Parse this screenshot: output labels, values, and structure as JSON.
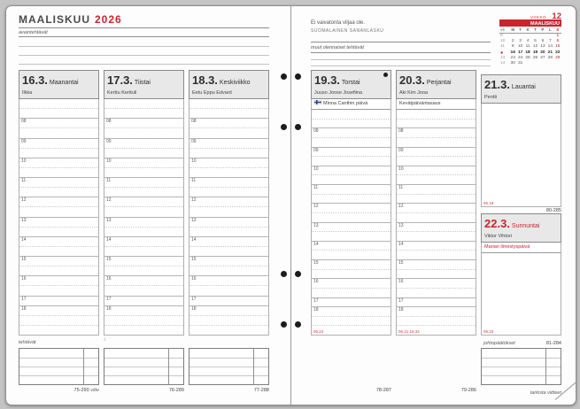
{
  "title": {
    "month": "MAALISKUU",
    "year": "2026"
  },
  "labels": {
    "key_tasks": "avaintehtävät",
    "tasks": "tehtävät",
    "other_tasks": "muut olennaiset tehtävät",
    "conclusions": "johtopäätökset",
    "check_references": "tarkista viitteet",
    "week": "VIIKKO",
    "day_count_suffix": "viite"
  },
  "proverb": {
    "text": "Ei vaivatonta viljaa ole.",
    "source": "SUOMALAINEN SANANLASKU"
  },
  "mini_calendar": {
    "week_number": "12",
    "month": "MAALISKUU",
    "dow": [
      "vk",
      "M",
      "T",
      "K",
      "T",
      "P",
      "L",
      "S"
    ],
    "rows": [
      {
        "wk": "9",
        "current": false,
        "days": [
          "",
          "",
          "",
          "",
          "",
          "",
          "1"
        ]
      },
      {
        "wk": "10",
        "current": false,
        "days": [
          "2",
          "3",
          "4",
          "5",
          "6",
          "7",
          "8"
        ]
      },
      {
        "wk": "11",
        "current": false,
        "days": [
          "9",
          "10",
          "11",
          "12",
          "13",
          "14",
          "15"
        ]
      },
      {
        "wk": "●",
        "current": true,
        "days": [
          "16",
          "17",
          "18",
          "19",
          "20",
          "21",
          "22"
        ]
      },
      {
        "wk": "13",
        "current": false,
        "days": [
          "23",
          "24",
          "25",
          "26",
          "27",
          "28",
          "29"
        ]
      },
      {
        "wk": "14",
        "current": false,
        "days": [
          "30",
          "31",
          "",
          "",
          "",
          "",
          ""
        ]
      }
    ]
  },
  "hours": [
    "08",
    "09",
    "10",
    "11",
    "12",
    "13",
    "14",
    "15",
    "16",
    "17",
    "18"
  ],
  "days": [
    {
      "date": "16.3.",
      "weekday": "Maanantai",
      "name_days": "Ilkka",
      "day_count": "75-290"
    },
    {
      "date": "17.3.",
      "weekday": "Tiistai",
      "name_days": "Kerttu Kerttuli",
      "day_count": "76-289",
      "moon_mark": "☾"
    },
    {
      "date": "18.3.",
      "weekday": "Keskiviikko",
      "name_days": "Eetu Eppu Edvard",
      "day_count": "77-288"
    },
    {
      "date": "19.3.",
      "weekday": "Torstai",
      "name_days": "Juuso Joose Josefiina",
      "special_day": "Minna Canthin päivä",
      "has_flag": true,
      "new_moon": true,
      "day_count": "78-287",
      "sun_times": "06.24"
    },
    {
      "date": "20.3.",
      "weekday": "Perjantai",
      "name_days": "Aki Kim Jooa",
      "special_day": "Kevätpäiväntasaus",
      "day_count": "79-286",
      "sun_times": "06.21 18.34"
    },
    {
      "date": "21.3.",
      "weekday": "Lauantai",
      "name_days": "Pentti",
      "day_count": "80-285",
      "sun_times": "06.18"
    },
    {
      "date": "22.3.",
      "weekday": "Sunnuntai",
      "name_days": "Viktor Vihtori",
      "special_day": "Marian ilmestyspäivä",
      "is_holiday": true,
      "day_count": "81-284",
      "sun_times": "06.15"
    }
  ],
  "colors": {
    "accent_red": "#c9252d",
    "header_bg": "#e8e8e8",
    "page_bg": "#fdfdfd"
  }
}
